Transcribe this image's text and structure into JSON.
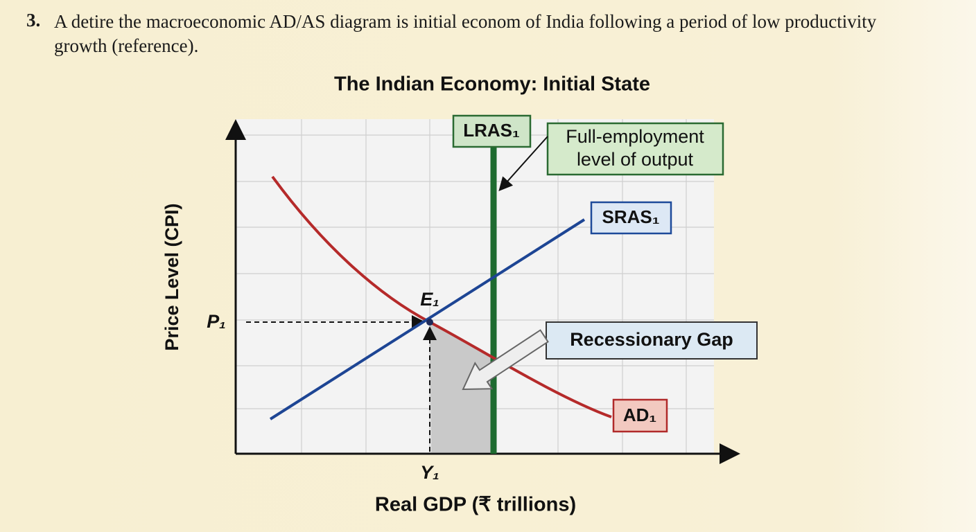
{
  "question": {
    "number": "3.",
    "text": "A detire the macroeconomic AD/AS diagram is initial econom of India following a period of low productivity growth (reference)."
  },
  "diagram": {
    "title": "The Indian Economy: Initial State",
    "lras_label": "LRAS₁",
    "full_employment_label": [
      "Full-employment",
      "level of output"
    ],
    "sras_label": "SRAS₁",
    "gap_label": "Recessionary Gap",
    "ad_label": "AD₁",
    "equilibrium_label": "E₁",
    "price_label": "P₁",
    "output_label": "Y₁",
    "y_axis_label": "Price Level (CPI)",
    "x_axis_label": "Real GDP (₹ trillions)"
  }
}
